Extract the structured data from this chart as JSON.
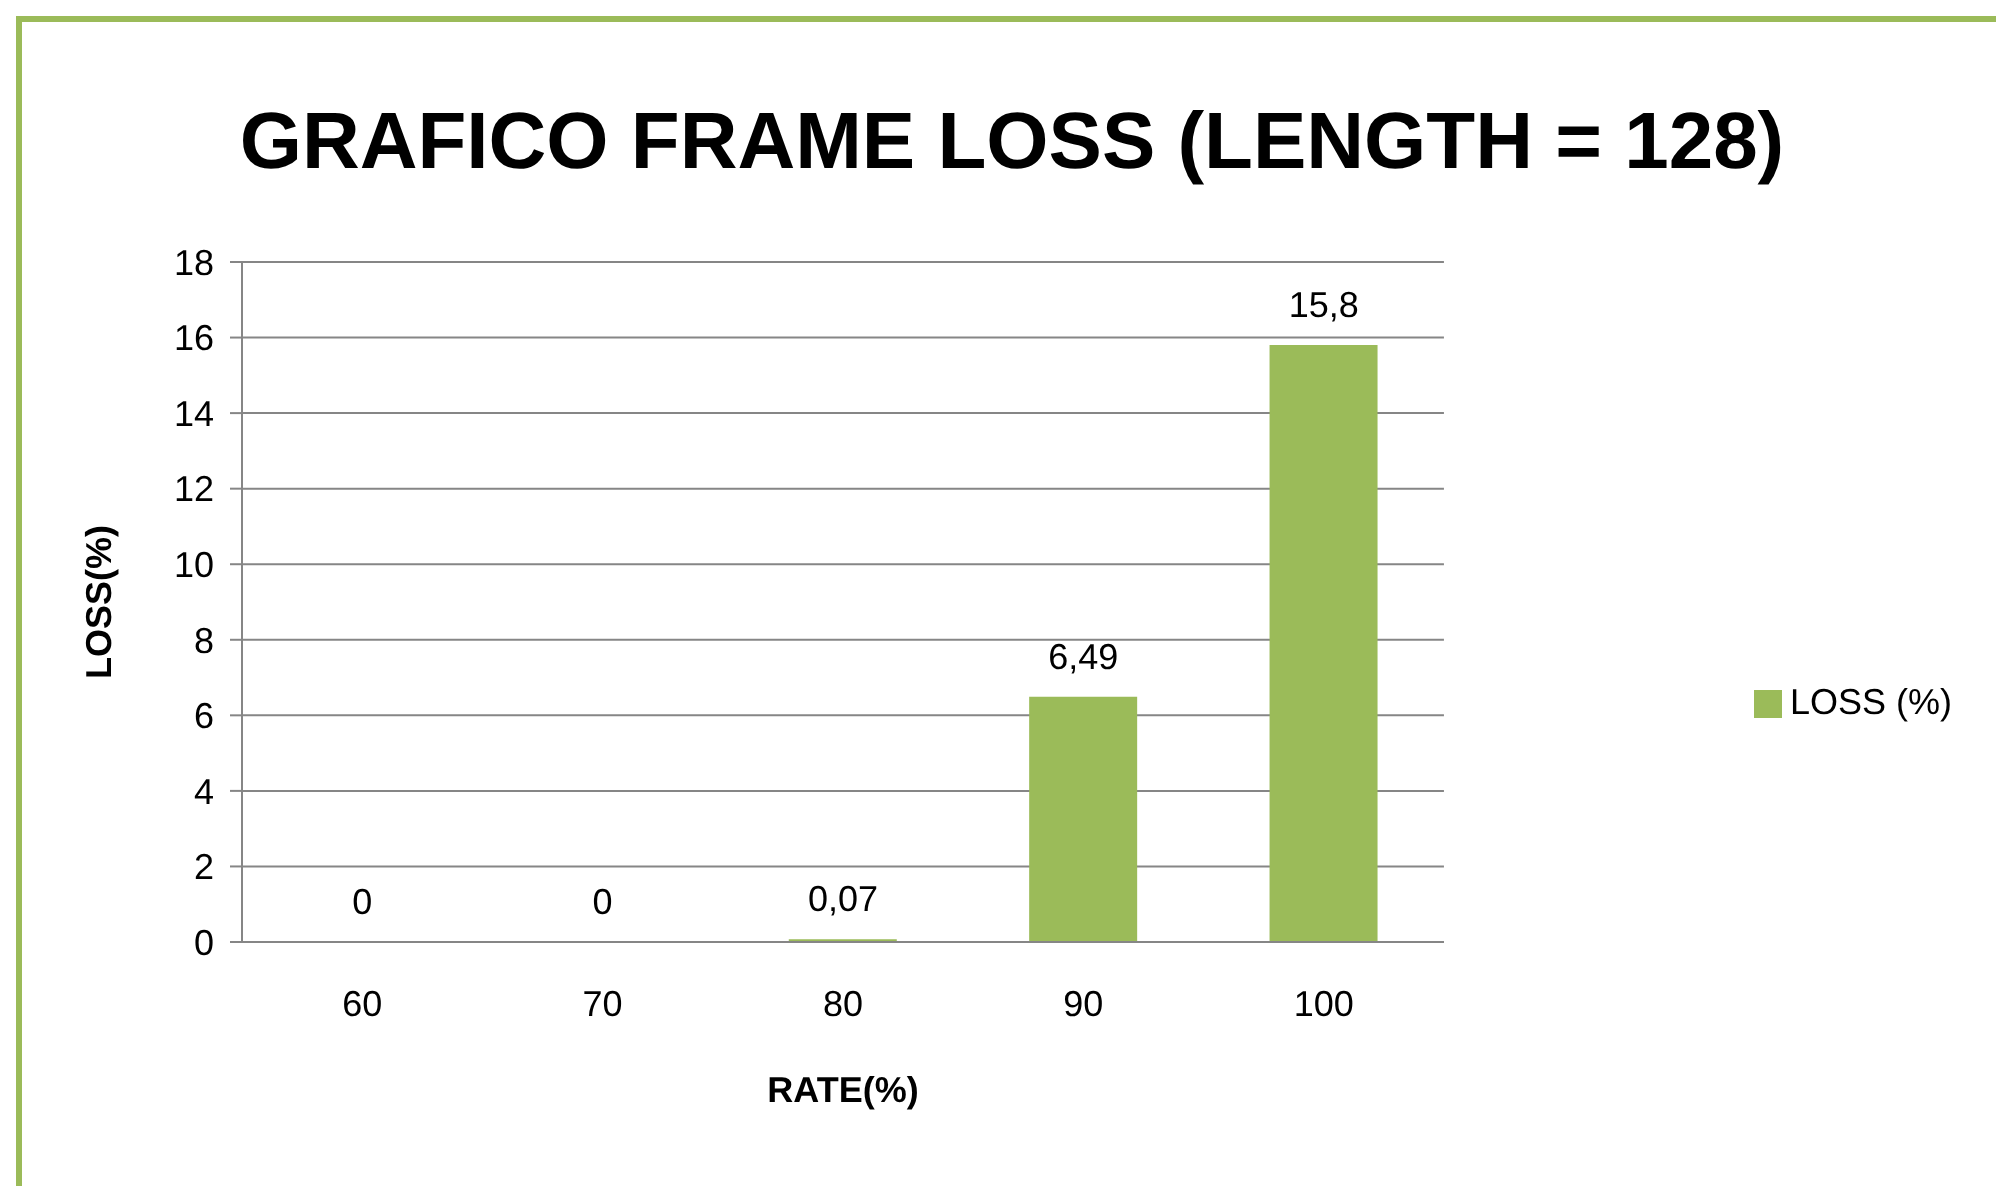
{
  "chart_data": {
    "type": "bar",
    "title": "GRAFICO FRAME LOSS (LENGTH = 128)",
    "xlabel": "RATE(%)",
    "ylabel": "LOSS(%)",
    "categories": [
      "60",
      "70",
      "80",
      "90",
      "100"
    ],
    "series": [
      {
        "name": "LOSS (%)",
        "color": "#9bbb59",
        "values": [
          0,
          0,
          0.07,
          6.49,
          15.8
        ],
        "value_labels": [
          "0",
          "0",
          "0,07",
          "6,49",
          "15,8"
        ]
      }
    ],
    "ylim": [
      0,
      18
    ],
    "yticks": [
      0,
      2,
      4,
      6,
      8,
      10,
      12,
      14,
      16,
      18
    ],
    "grid": "y",
    "legend": "right"
  }
}
